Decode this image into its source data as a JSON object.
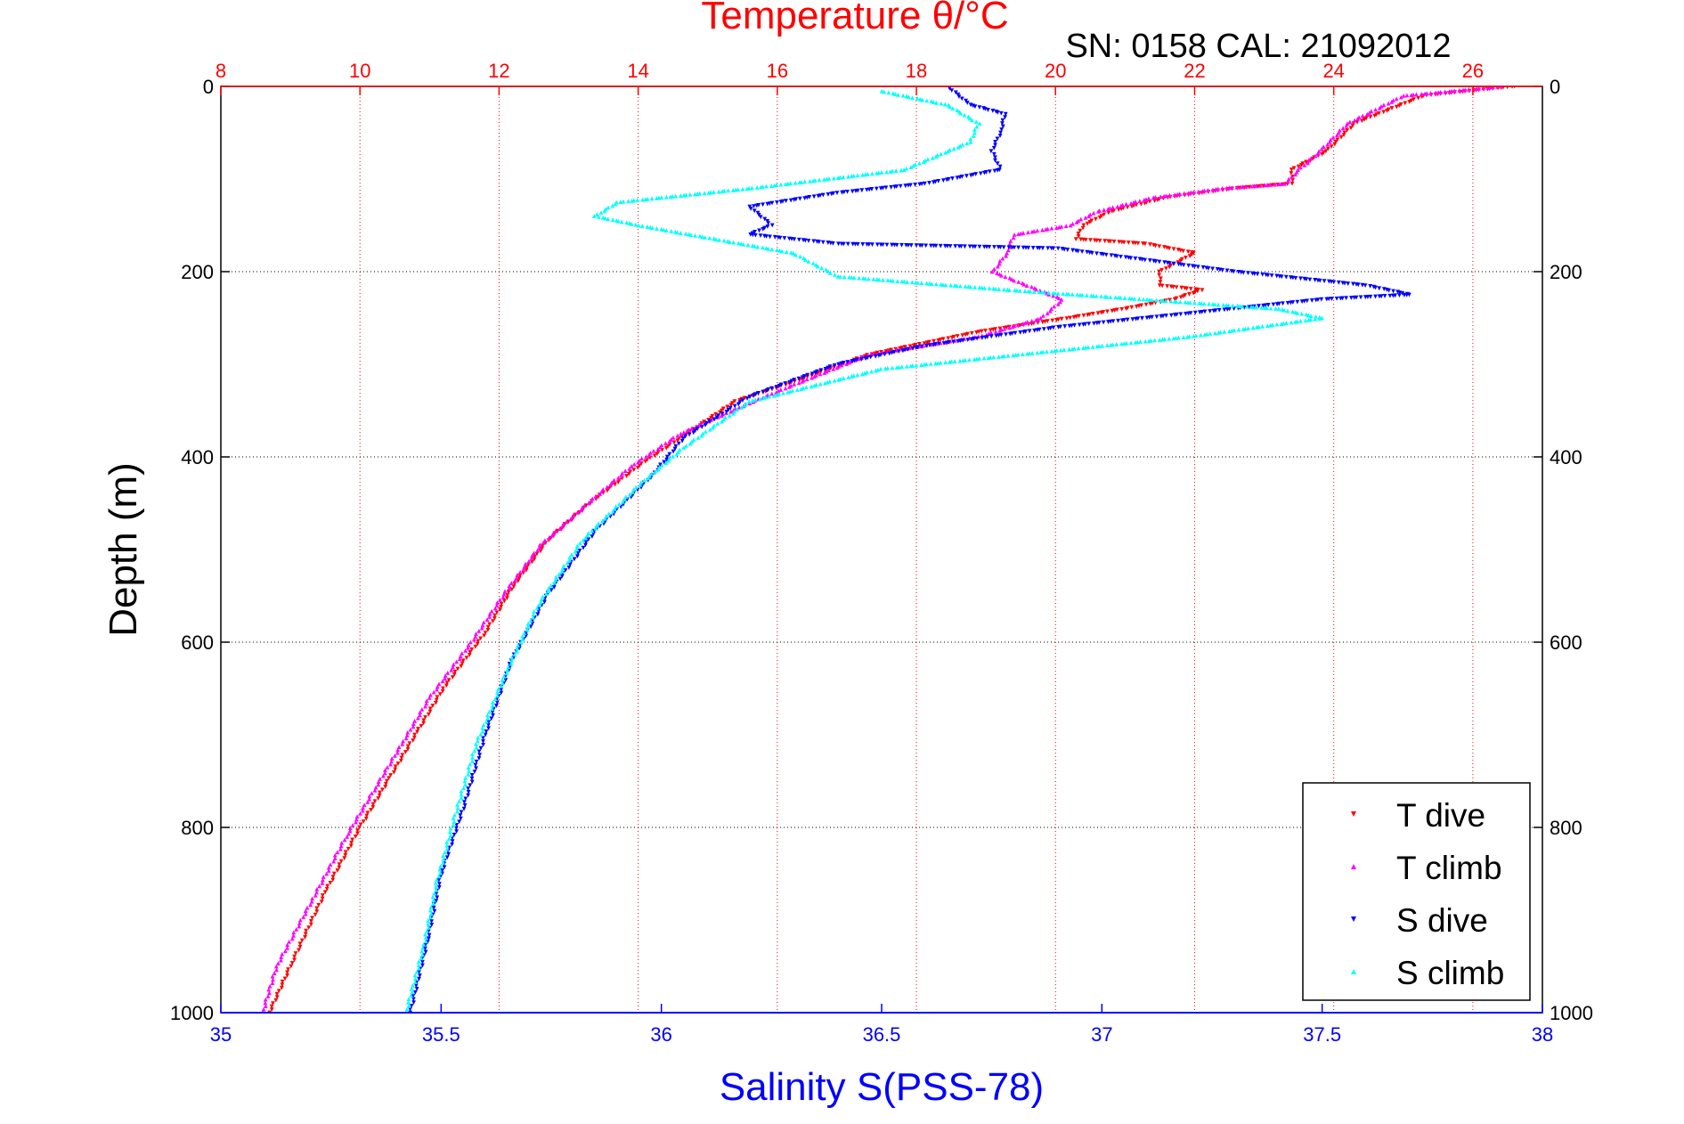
{
  "chart_data": {
    "type": "scatter",
    "title": "Temperature θ/°C",
    "subtitle": "SN: 0158  CAL: 21092012",
    "xlabel": "Salinity S(PSS-78)",
    "x2label": "Temperature θ/°C",
    "ylabel": "Depth (m)",
    "xlim": [
      35,
      38
    ],
    "x2lim": [
      8,
      27
    ],
    "ylim": [
      1000,
      0
    ],
    "x_ticks": [
      "35",
      "35.5",
      "36",
      "36.5",
      "37",
      "37.5",
      "38"
    ],
    "x2_ticks": [
      "8",
      "10",
      "12",
      "14",
      "16",
      "18",
      "20",
      "22",
      "24",
      "26"
    ],
    "y_ticks": [
      "0",
      "200",
      "400",
      "600",
      "800",
      "1000"
    ],
    "grid": true,
    "legend_position": "bottom-right",
    "colors": {
      "t_dive": "#ff0000",
      "t_climb": "#ff00ff",
      "s_dive": "#0000ff",
      "s_climb": "#00ffff",
      "temperature_axis": "#ff0000",
      "salinity_axis": "#0000ff"
    },
    "series": [
      {
        "name": "T dive",
        "axis": "temperature",
        "marker": "triangle-down",
        "points": [
          [
            26.6,
            0
          ],
          [
            25.3,
            10
          ],
          [
            24.3,
            40
          ],
          [
            23.9,
            70
          ],
          [
            23.4,
            90
          ],
          [
            23.4,
            105
          ],
          [
            22.6,
            110
          ],
          [
            21.6,
            120
          ],
          [
            20.8,
            135
          ],
          [
            20.4,
            150
          ],
          [
            20.3,
            165
          ],
          [
            21.3,
            170
          ],
          [
            22.0,
            180
          ],
          [
            21.5,
            200
          ],
          [
            21.5,
            215
          ],
          [
            22.1,
            220
          ],
          [
            21.7,
            230
          ],
          [
            21.0,
            240
          ],
          [
            20.2,
            250
          ],
          [
            18.9,
            265
          ],
          [
            17.3,
            290
          ],
          [
            16.4,
            315
          ],
          [
            15.4,
            340
          ],
          [
            14.8,
            370
          ],
          [
            14.1,
            405
          ],
          [
            13.3,
            450
          ],
          [
            12.7,
            490
          ],
          [
            12.2,
            540
          ],
          [
            11.8,
            590
          ],
          [
            11.2,
            650
          ],
          [
            10.8,
            700
          ],
          [
            10.4,
            750
          ],
          [
            10.0,
            800
          ],
          [
            9.5,
            870
          ],
          [
            9.0,
            950
          ],
          [
            8.7,
            1000
          ]
        ]
      },
      {
        "name": "T climb",
        "axis": "temperature",
        "marker": "triangle-up",
        "points": [
          [
            26.4,
            0
          ],
          [
            25.0,
            10
          ],
          [
            24.2,
            40
          ],
          [
            23.8,
            70
          ],
          [
            23.5,
            90
          ],
          [
            23.3,
            105
          ],
          [
            22.4,
            110
          ],
          [
            21.4,
            120
          ],
          [
            20.6,
            135
          ],
          [
            20.2,
            150
          ],
          [
            19.4,
            160
          ],
          [
            19.3,
            180
          ],
          [
            19.1,
            200
          ],
          [
            20.1,
            230
          ],
          [
            19.8,
            250
          ],
          [
            18.9,
            270
          ],
          [
            17.3,
            290
          ],
          [
            16.3,
            320
          ],
          [
            15.5,
            345
          ],
          [
            14.6,
            375
          ],
          [
            13.9,
            410
          ],
          [
            13.2,
            455
          ],
          [
            12.6,
            495
          ],
          [
            12.1,
            545
          ],
          [
            11.6,
            600
          ],
          [
            11.0,
            660
          ],
          [
            10.6,
            710
          ],
          [
            10.2,
            760
          ],
          [
            9.8,
            810
          ],
          [
            9.3,
            880
          ],
          [
            8.8,
            950
          ],
          [
            8.6,
            1000
          ]
        ]
      },
      {
        "name": "S dive",
        "axis": "salinity",
        "marker": "triangle-down",
        "points": [
          [
            36.65,
            0
          ],
          [
            36.7,
            20
          ],
          [
            36.78,
            30
          ],
          [
            36.77,
            50
          ],
          [
            36.75,
            70
          ],
          [
            36.77,
            90
          ],
          [
            36.6,
            105
          ],
          [
            36.4,
            115
          ],
          [
            36.2,
            130
          ],
          [
            36.25,
            150
          ],
          [
            36.2,
            160
          ],
          [
            36.4,
            170
          ],
          [
            36.9,
            175
          ],
          [
            37.3,
            200
          ],
          [
            37.6,
            215
          ],
          [
            37.7,
            225
          ],
          [
            37.5,
            230
          ],
          [
            37.3,
            240
          ],
          [
            36.9,
            260
          ],
          [
            36.6,
            280
          ],
          [
            36.4,
            300
          ],
          [
            36.2,
            335
          ],
          [
            36.05,
            380
          ],
          [
            35.98,
            420
          ],
          [
            35.85,
            480
          ],
          [
            35.74,
            550
          ],
          [
            35.66,
            620
          ],
          [
            35.6,
            700
          ],
          [
            35.55,
            780
          ],
          [
            35.5,
            850
          ],
          [
            35.47,
            920
          ],
          [
            35.43,
            1000
          ]
        ]
      },
      {
        "name": "S climb",
        "axis": "salinity",
        "marker": "triangle-up",
        "points": [
          [
            36.5,
            5
          ],
          [
            36.65,
            20
          ],
          [
            36.72,
            40
          ],
          [
            36.7,
            60
          ],
          [
            36.55,
            90
          ],
          [
            36.2,
            110
          ],
          [
            35.9,
            125
          ],
          [
            35.85,
            140
          ],
          [
            35.95,
            150
          ],
          [
            36.3,
            180
          ],
          [
            36.4,
            205
          ],
          [
            36.8,
            220
          ],
          [
            37.1,
            230
          ],
          [
            37.4,
            240
          ],
          [
            37.5,
            250
          ],
          [
            37.2,
            270
          ],
          [
            36.9,
            285
          ],
          [
            36.5,
            305
          ],
          [
            36.2,
            340
          ],
          [
            36.05,
            390
          ],
          [
            35.95,
            430
          ],
          [
            35.82,
            490
          ],
          [
            35.72,
            560
          ],
          [
            35.65,
            630
          ],
          [
            35.58,
            710
          ],
          [
            35.53,
            790
          ],
          [
            35.49,
            860
          ],
          [
            35.46,
            930
          ],
          [
            35.42,
            1000
          ]
        ]
      }
    ]
  }
}
